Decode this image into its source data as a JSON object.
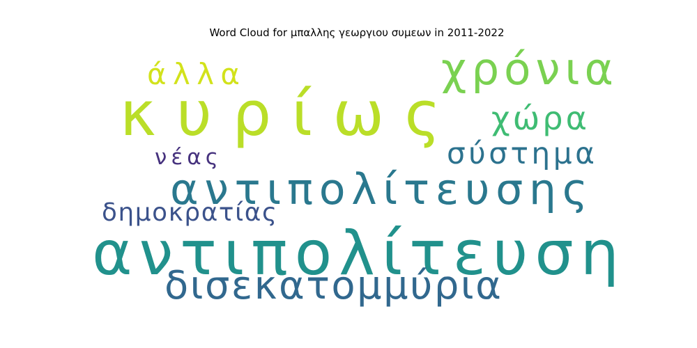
{
  "chart_data": {
    "type": "wordcloud",
    "title": "Word Cloud for μπαλλης γεωργιου συμεων in 2011-2022",
    "words": [
      {
        "text": "κυρίως",
        "color": "#bade28"
      },
      {
        "text": "αντιπολίτευση",
        "color": "#21918c"
      },
      {
        "text": "αντιπολίτευσης",
        "color": "#2a788e"
      },
      {
        "text": "χρόνια",
        "color": "#7ad151"
      },
      {
        "text": "δισεκατομμύρια",
        "color": "#31688e"
      },
      {
        "text": "άλλα",
        "color": "#d2e21b"
      },
      {
        "text": "χώρα",
        "color": "#3fbc73"
      },
      {
        "text": "σύστημα",
        "color": "#2c728e"
      },
      {
        "text": "δημοκρατίας",
        "color": "#3b528b"
      },
      {
        "text": "νέας",
        "color": "#46327e"
      }
    ]
  }
}
